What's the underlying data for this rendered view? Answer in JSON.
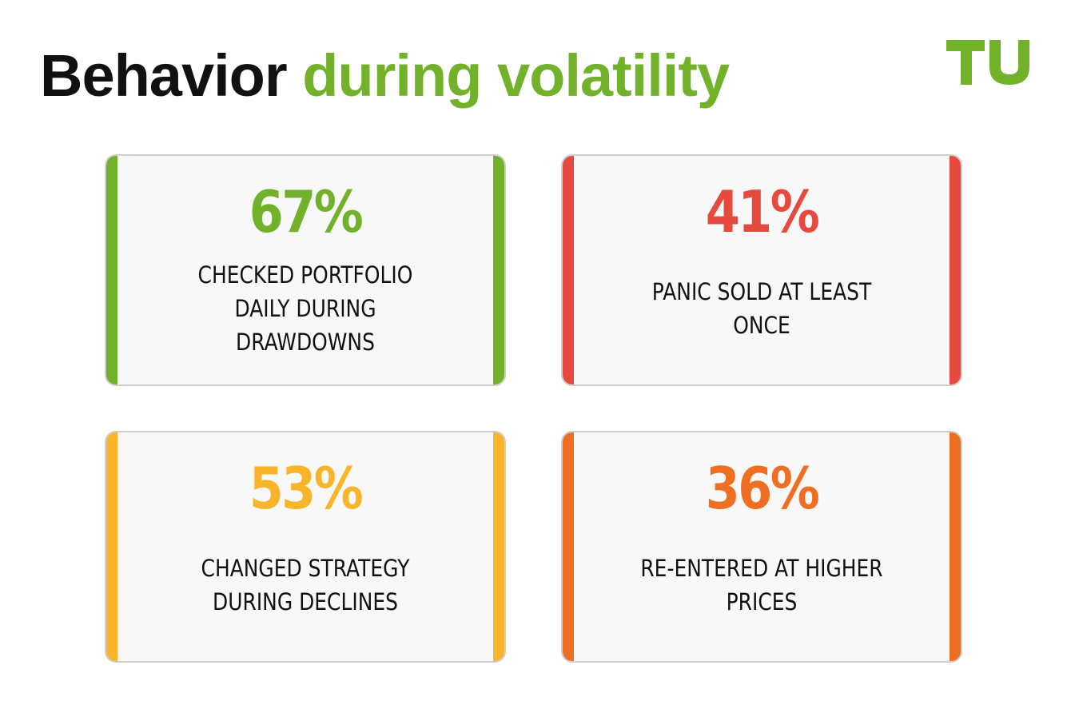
{
  "title": {
    "part1": "Behavior",
    "part2": "during volatility"
  },
  "logo": {
    "text": "TU",
    "color": "#72b22a"
  },
  "colors": {
    "title_dark": "#111111",
    "title_accent": "#72b22a",
    "green": "#72b22a",
    "red": "#e64a3f",
    "yellow": "#f8b52a",
    "orange": "#ee6e22"
  },
  "stats": [
    {
      "value": "67%",
      "label": "CHECKED PORTFOLIO DAILY DURING DRAWDOWNS",
      "color": "#72b22a"
    },
    {
      "value": "41%",
      "label": "PANIC SOLD AT LEAST ONCE",
      "color": "#e64a3f"
    },
    {
      "value": "53%",
      "label": "CHANGED STRATEGY DURING DECLINES",
      "color": "#f8b52a"
    },
    {
      "value": "36%",
      "label": "RE-ENTERED AT HIGHER PRICES",
      "color": "#ee6e22"
    }
  ]
}
